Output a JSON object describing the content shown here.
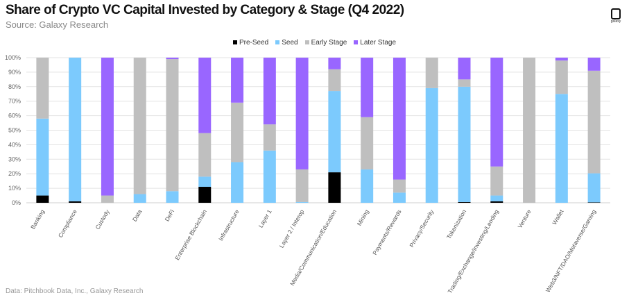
{
  "chart_data": {
    "type": "bar",
    "stacked": true,
    "title": "Share of Crypto VC Capital Invested by Category & Stage (Q4 2022)",
    "subtitle": "Source: Galaxy Research",
    "footer": "Data: Pitchbook Data, Inc., Galaxy Research",
    "logo_text": "galaxy",
    "ylim": [
      0,
      100
    ],
    "yticks": [
      "0%",
      "10%",
      "20%",
      "30%",
      "40%",
      "50%",
      "60%",
      "70%",
      "80%",
      "90%",
      "100%"
    ],
    "grid": true,
    "legend_position": "top-center",
    "categories": [
      "Banking",
      "Compliance",
      "Custody",
      "Data",
      "DeFi",
      "Enterprise Blockchain",
      "Infrastructure",
      "Layer 1",
      "Layer 2 / Interop",
      "Media/Communication/Education",
      "Mining",
      "Payments/Rewards",
      "Privacy/Security",
      "Tokenization",
      "Trading/Exchange/Investing/Lending",
      "Venture",
      "Wallet",
      "Web3/NFT/DAO/Metaverse/Gaming"
    ],
    "series": [
      {
        "name": "Pre-Seed",
        "color": "#000000",
        "values": [
          5,
          1,
          0,
          0,
          0,
          11,
          0,
          0,
          0,
          21,
          0,
          0,
          0,
          0.5,
          1,
          0,
          0,
          0.3
        ]
      },
      {
        "name": "Seed",
        "color": "#7ccafd",
        "values": [
          53,
          99,
          0,
          6,
          8,
          7,
          28,
          36,
          0.5,
          56,
          23,
          7,
          79,
          79.5,
          4,
          0,
          75,
          20
        ]
      },
      {
        "name": "Early Stage",
        "color": "#bfbfbf",
        "values": [
          42,
          0,
          5,
          94,
          91,
          30,
          41,
          18,
          22.5,
          15,
          36,
          9,
          21,
          5,
          20,
          100,
          23,
          70.7
        ]
      },
      {
        "name": "Later Stage",
        "color": "#9966ff",
        "values": [
          0,
          0,
          95,
          0,
          1,
          52,
          31,
          46,
          77,
          8,
          41,
          84,
          0,
          15,
          75,
          0,
          2,
          9
        ]
      }
    ]
  }
}
